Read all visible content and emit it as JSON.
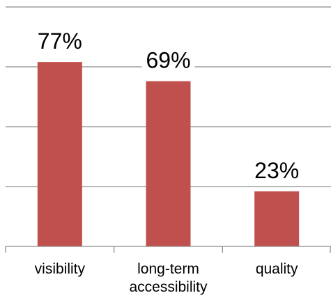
{
  "chart_data": {
    "type": "bar",
    "categories": [
      "visibility",
      "long-term accessibility",
      "quality"
    ],
    "category_lines": [
      [
        "visibility"
      ],
      [
        "long-term",
        "accessibility"
      ],
      [
        "quality"
      ]
    ],
    "values": [
      77,
      69,
      23
    ],
    "data_labels": [
      "77%",
      "69%",
      "23%"
    ],
    "ylim": [
      0,
      100
    ],
    "title": "",
    "xlabel": "",
    "ylabel": "",
    "grid": true,
    "legend": "none",
    "bar_color": "#c0504d"
  }
}
